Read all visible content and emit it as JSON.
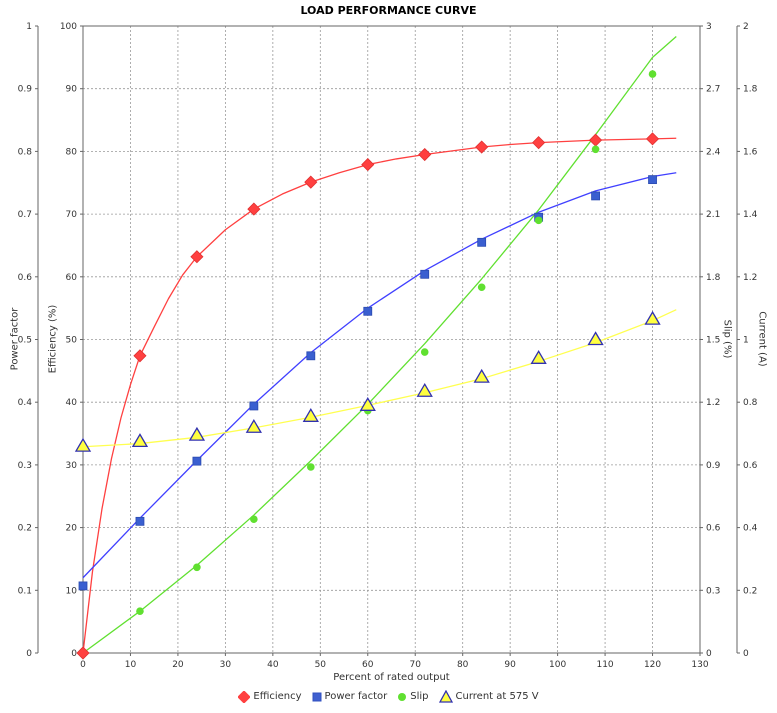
{
  "chart_data": {
    "type": "line",
    "title": "LOAD PERFORMANCE CURVE",
    "xlabel": "Percent of rated output",
    "xlim": [
      0,
      130
    ],
    "x_ticks": [
      "0",
      "10",
      "20",
      "30",
      "40",
      "50",
      "60",
      "70",
      "80",
      "90",
      "100",
      "110",
      "120",
      "130"
    ],
    "grid": true,
    "legend_position": "bottom",
    "axes": {
      "power_factor": {
        "label": "Power factor",
        "side": "left-outer",
        "lim": [
          0,
          1
        ],
        "ticks": [
          "0",
          "0.1",
          "0.2",
          "0.3",
          "0.4",
          "0.5",
          "0.6",
          "0.7",
          "0.8",
          "0.9",
          "1"
        ]
      },
      "efficiency": {
        "label": "Efficiency (%)",
        "side": "left-inner",
        "lim": [
          0,
          100
        ],
        "ticks": [
          "0",
          "10",
          "20",
          "30",
          "40",
          "50",
          "60",
          "70",
          "80",
          "90",
          "100"
        ]
      },
      "slip": {
        "label": "Slip (%)",
        "side": "right-inner",
        "lim": [
          0,
          3
        ],
        "ticks": [
          "0",
          "0.3",
          "0.6",
          "0.9",
          "1.2",
          "1.5",
          "1.8",
          "2.1",
          "2.4",
          "2.7",
          "3"
        ]
      },
      "current": {
        "label": "Current (A)",
        "side": "right-outer",
        "lim": [
          0,
          2
        ],
        "ticks": [
          "0",
          "0.2",
          "0.4",
          "0.6",
          "0.8",
          "1",
          "1.2",
          "1.4",
          "1.6",
          "1.8",
          "2"
        ]
      }
    },
    "series": [
      {
        "name": "Efficiency",
        "axis": "efficiency",
        "color": "#ff4040",
        "marker": "diamond",
        "points": [
          [
            0,
            0
          ],
          [
            12,
            47.4
          ],
          [
            24,
            63.2
          ],
          [
            36,
            70.8
          ],
          [
            48,
            75.1
          ],
          [
            60,
            77.9
          ],
          [
            72,
            79.5
          ],
          [
            84,
            80.7
          ],
          [
            96,
            81.4
          ],
          [
            108,
            81.8
          ],
          [
            120,
            82.0
          ]
        ],
        "curve": [
          [
            0,
            0
          ],
          [
            2,
            13
          ],
          [
            4,
            23
          ],
          [
            6,
            31
          ],
          [
            8,
            37.5
          ],
          [
            10,
            42.8
          ],
          [
            12,
            47.4
          ],
          [
            15,
            52
          ],
          [
            18,
            56.5
          ],
          [
            21,
            60.3
          ],
          [
            24,
            63.2
          ],
          [
            30,
            67.5
          ],
          [
            36,
            70.8
          ],
          [
            42,
            73.2
          ],
          [
            48,
            75.1
          ],
          [
            54,
            76.6
          ],
          [
            60,
            77.9
          ],
          [
            66,
            78.8
          ],
          [
            72,
            79.5
          ],
          [
            78,
            80.1
          ],
          [
            84,
            80.7
          ],
          [
            90,
            81.1
          ],
          [
            96,
            81.4
          ],
          [
            102,
            81.6
          ],
          [
            108,
            81.8
          ],
          [
            114,
            81.9
          ],
          [
            120,
            82.0
          ],
          [
            125,
            82.1
          ]
        ]
      },
      {
        "name": "Power factor",
        "axis": "power_factor",
        "color": "#4040ff",
        "marker": "square",
        "points": [
          [
            0,
            0.107
          ],
          [
            12,
            0.21
          ],
          [
            24,
            0.306
          ],
          [
            36,
            0.394
          ],
          [
            48,
            0.474
          ],
          [
            60,
            0.545
          ],
          [
            72,
            0.604
          ],
          [
            84,
            0.655
          ],
          [
            96,
            0.695
          ],
          [
            108,
            0.729
          ],
          [
            120,
            0.755
          ]
        ],
        "curve": [
          [
            0,
            0.12
          ],
          [
            12,
            0.215
          ],
          [
            24,
            0.307
          ],
          [
            36,
            0.397
          ],
          [
            48,
            0.479
          ],
          [
            60,
            0.55
          ],
          [
            72,
            0.61
          ],
          [
            84,
            0.66
          ],
          [
            96,
            0.703
          ],
          [
            108,
            0.737
          ],
          [
            120,
            0.76
          ],
          [
            125,
            0.766
          ]
        ]
      },
      {
        "name": "Slip",
        "axis": "slip",
        "color": "#60e030",
        "marker": "circle",
        "points": [
          [
            12,
            0.2
          ],
          [
            24,
            0.41
          ],
          [
            36,
            0.64
          ],
          [
            48,
            0.89
          ],
          [
            60,
            1.16
          ],
          [
            72,
            1.44
          ],
          [
            84,
            1.75
          ],
          [
            96,
            2.07
          ],
          [
            108,
            2.41
          ],
          [
            120,
            2.77
          ]
        ],
        "curve": [
          [
            0,
            0
          ],
          [
            12,
            0.2
          ],
          [
            24,
            0.42
          ],
          [
            36,
            0.66
          ],
          [
            48,
            0.92
          ],
          [
            60,
            1.19
          ],
          [
            72,
            1.48
          ],
          [
            84,
            1.79
          ],
          [
            96,
            2.12
          ],
          [
            108,
            2.48
          ],
          [
            120,
            2.85
          ],
          [
            125,
            2.95
          ]
        ]
      },
      {
        "name": "Current at 575 V",
        "axis": "current",
        "color": "#ffff40",
        "marker": "triangle",
        "points": [
          [
            0,
            0.66
          ],
          [
            12,
            0.675
          ],
          [
            24,
            0.695
          ],
          [
            36,
            0.72
          ],
          [
            48,
            0.755
          ],
          [
            60,
            0.79
          ],
          [
            72,
            0.835
          ],
          [
            84,
            0.88
          ],
          [
            96,
            0.94
          ],
          [
            108,
            1.0
          ],
          [
            120,
            1.065
          ]
        ],
        "curve": [
          [
            0,
            0.658
          ],
          [
            12,
            0.668
          ],
          [
            24,
            0.688
          ],
          [
            36,
            0.718
          ],
          [
            48,
            0.752
          ],
          [
            60,
            0.79
          ],
          [
            72,
            0.83
          ],
          [
            84,
            0.875
          ],
          [
            96,
            0.93
          ],
          [
            108,
            0.99
          ],
          [
            120,
            1.06
          ],
          [
            125,
            1.095
          ]
        ]
      }
    ]
  }
}
